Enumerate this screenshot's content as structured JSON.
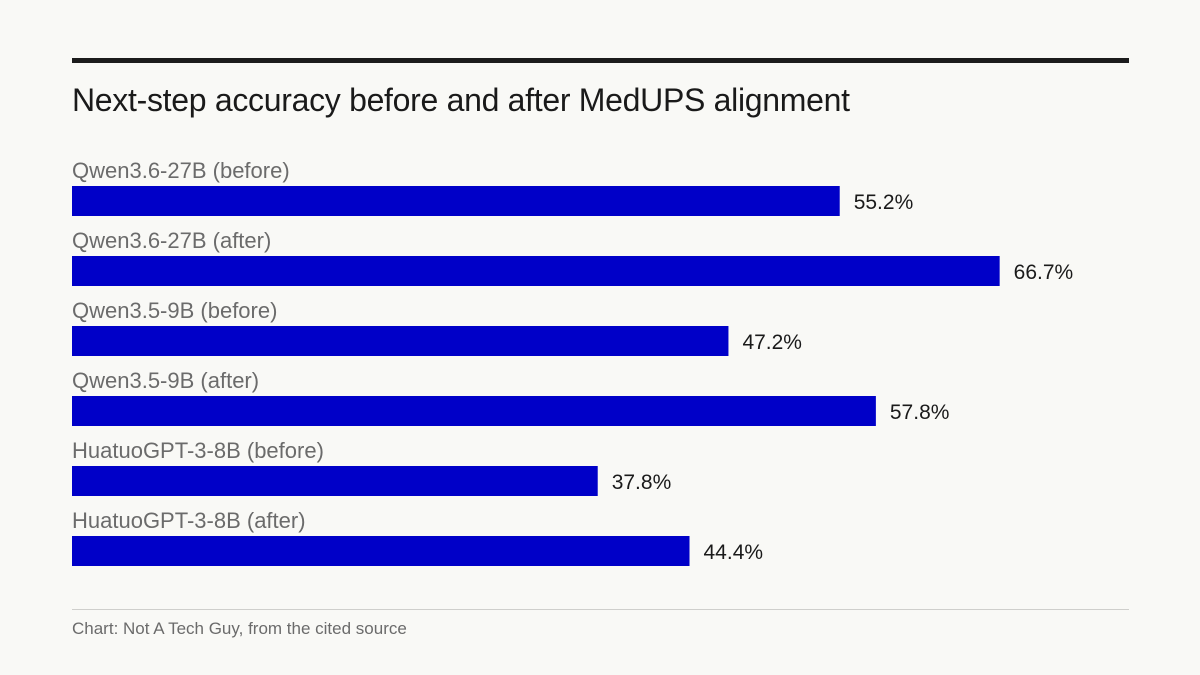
{
  "chart_data": {
    "type": "bar",
    "orientation": "horizontal",
    "title": "Next-step accuracy before and after MedUPS alignment",
    "categories": [
      "Qwen3.6-27B (before)",
      "Qwen3.6-27B (after)",
      "Qwen3.5-9B (before)",
      "Qwen3.5-9B (after)",
      "HuatuoGPT-3-8B (before)",
      "HuatuoGPT-3-8B (after)"
    ],
    "values": [
      55.2,
      66.7,
      47.2,
      57.8,
      37.8,
      44.4
    ],
    "value_labels": [
      "55.2%",
      "66.7%",
      "47.2%",
      "57.8%",
      "37.8%",
      "44.4%"
    ],
    "bar_color": "#0000c8",
    "xlim": [
      0,
      76
    ],
    "grid": false,
    "legend": "none"
  },
  "source": "Chart: Not A Tech Guy, from the cited source"
}
